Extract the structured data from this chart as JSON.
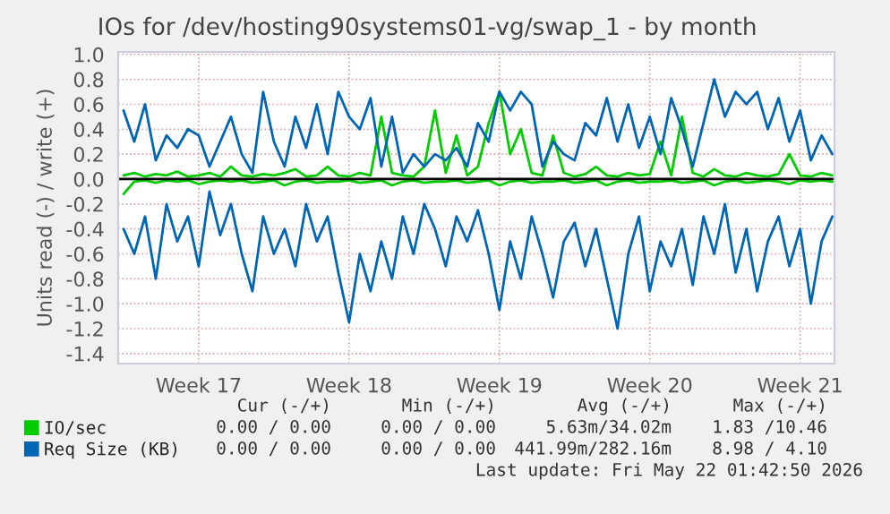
{
  "chart_data": {
    "type": "line",
    "title": "IOs for /dev/hosting90systems01-vg/swap_1 - by month",
    "ylabel": "Units read (-) / write (+)",
    "categories": [
      null,
      null,
      null,
      null,
      null,
      null,
      null,
      "Week 17",
      null,
      null,
      null,
      null,
      null,
      null,
      null,
      null,
      null,
      null,
      null,
      null,
      null,
      "Week 18",
      null,
      null,
      null,
      null,
      null,
      null,
      null,
      null,
      null,
      null,
      null,
      null,
      null,
      "Week 19",
      null,
      null,
      null,
      null,
      null,
      null,
      null,
      null,
      null,
      null,
      null,
      null,
      null,
      "Week 20",
      null,
      null,
      null,
      null,
      null,
      null,
      null,
      null,
      null,
      null,
      null,
      null,
      null,
      "Week 21",
      null,
      null,
      null
    ],
    "series": [
      {
        "name": "IO/sec",
        "color": "#00cc00",
        "values": [
          0.03,
          0.05,
          0.02,
          0.04,
          0.03,
          0.06,
          0.02,
          0.03,
          0.05,
          0.02,
          0.1,
          0.03,
          0.02,
          0.04,
          0.03,
          0.05,
          0.08,
          0.02,
          0.03,
          0.1,
          0.03,
          0.02,
          0.05,
          0.03,
          0.5,
          0.05,
          0.03,
          0.02,
          0.1,
          0.55,
          0.05,
          0.35,
          0.03,
          0.1,
          0.45,
          0.7,
          0.2,
          0.4,
          0.05,
          0.03,
          0.35,
          0.05,
          0.02,
          0.04,
          0.1,
          0.03,
          0.02,
          0.05,
          0.03,
          0.04,
          0.3,
          0.03,
          0.5,
          0.05,
          0.02,
          0.08,
          0.03,
          0.02,
          0.05,
          0.03,
          0.02,
          0.04,
          0.2,
          0.03,
          0.02,
          0.05,
          0.03
        ]
      },
      {
        "color": "#00cc00",
        "values": [
          -0.12,
          -0.02,
          -0.01,
          -0.03,
          -0.01,
          -0.02,
          -0.01,
          -0.04,
          -0.02,
          -0.01,
          -0.02,
          -0.01,
          -0.03,
          -0.02,
          -0.01,
          -0.05,
          -0.02,
          -0.01,
          -0.03,
          -0.02,
          -0.02,
          -0.01,
          -0.03,
          -0.02,
          -0.01,
          -0.05,
          -0.02,
          -0.01,
          -0.03,
          -0.02,
          -0.02,
          -0.01,
          -0.03,
          -0.02,
          -0.01,
          -0.05,
          -0.02,
          -0.01,
          -0.03,
          -0.02,
          -0.02,
          -0.01,
          -0.03,
          -0.02,
          -0.01,
          -0.05,
          -0.02,
          -0.01,
          -0.03,
          -0.02,
          -0.02,
          -0.01,
          -0.03,
          -0.02,
          -0.01,
          -0.05,
          -0.02,
          -0.01,
          -0.03,
          -0.02,
          -0.01,
          -0.02,
          -0.04,
          -0.01,
          -0.02,
          -0.01,
          -0.02
        ]
      },
      {
        "name": "Req Size (KB)",
        "color": "#0066b3",
        "values": [
          0.55,
          0.3,
          0.6,
          0.15,
          0.35,
          0.25,
          0.4,
          0.35,
          0.1,
          0.3,
          0.5,
          0.2,
          0.05,
          0.7,
          0.3,
          0.1,
          0.5,
          0.25,
          0.6,
          0.2,
          0.7,
          0.5,
          0.4,
          0.65,
          0.1,
          0.5,
          0.05,
          0.2,
          0.1,
          0.2,
          0.15,
          0.25,
          0.1,
          0.45,
          0.3,
          0.7,
          0.55,
          0.7,
          0.6,
          0.1,
          0.3,
          0.2,
          0.15,
          0.45,
          0.35,
          0.65,
          0.3,
          0.6,
          0.25,
          0.5,
          0.2,
          0.65,
          0.4,
          0.1,
          0.45,
          0.8,
          0.5,
          0.7,
          0.6,
          0.7,
          0.4,
          0.65,
          0.3,
          0.55,
          0.15,
          0.35,
          0.2
        ]
      },
      {
        "color": "#0066b3",
        "values": [
          -0.4,
          -0.6,
          -0.3,
          -0.8,
          -0.2,
          -0.5,
          -0.3,
          -0.7,
          -0.1,
          -0.45,
          -0.2,
          -0.6,
          -0.9,
          -0.3,
          -0.6,
          -0.4,
          -0.7,
          -0.2,
          -0.5,
          -0.3,
          -0.75,
          -1.15,
          -0.6,
          -0.9,
          -0.5,
          -0.8,
          -0.3,
          -0.6,
          -0.2,
          -0.4,
          -0.7,
          -0.3,
          -0.5,
          -0.25,
          -0.6,
          -1.05,
          -0.5,
          -0.8,
          -0.3,
          -0.6,
          -0.95,
          -0.5,
          -0.35,
          -0.7,
          -0.4,
          -0.8,
          -1.2,
          -0.6,
          -0.3,
          -0.9,
          -0.5,
          -0.7,
          -0.4,
          -0.85,
          -0.3,
          -0.6,
          -0.2,
          -0.75,
          -0.4,
          -0.9,
          -0.5,
          -0.3,
          -0.7,
          -0.4,
          -1.0,
          -0.5,
          -0.3
        ]
      }
    ],
    "ylim": [
      -1.48,
      1.02
    ],
    "yticks": [
      {
        "value": -1.4,
        "label": "-1.4"
      },
      {
        "value": -1.2,
        "label": "-1.2"
      },
      {
        "value": -1.0,
        "label": "-1.0"
      },
      {
        "value": -0.8,
        "label": "-0.8"
      },
      {
        "value": -0.6,
        "label": "-0.6"
      },
      {
        "value": -0.4,
        "label": "-0.4"
      },
      {
        "value": -0.2,
        "label": "-0.2"
      },
      {
        "value": 0,
        "label": "0.0"
      },
      {
        "value": 0.2,
        "label": "0.2"
      },
      {
        "value": 0.4,
        "label": "0.4"
      },
      {
        "value": 0.6,
        "label": "0.6"
      },
      {
        "value": 0.8,
        "label": "0.8"
      },
      {
        "value": 1.0,
        "label": "1.0"
      }
    ],
    "ref_lines": [
      {
        "axis": "y",
        "value": 0,
        "color": "#000000"
      }
    ],
    "grid": true,
    "legend": "bottom left",
    "marker": "none",
    "line_style": "solid",
    "annotations": [
      "Cur (-/+)",
      "Min (-/+)",
      "Avg (-/+)",
      "Max (-/+)",
      "0.00 / 0.00",
      "0.00 / 0.00",
      "5.63m/34.02m",
      "1.83 /10.46",
      "0.00 / 0.00",
      "0.00 / 0.00",
      "441.99m/282.16m",
      "8.98 / 4.10",
      "Last update: Fri May 22 01:42:50 2026"
    ]
  }
}
